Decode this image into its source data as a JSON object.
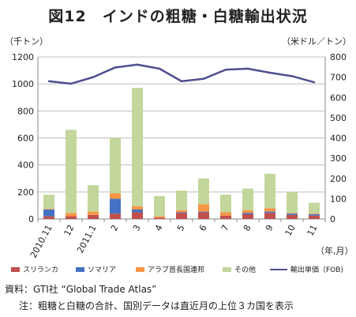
{
  "title": "図12　インドの粗糖・白糖輸出状況",
  "left_unit": "（千トン）",
  "right_unit": "（米ドル／トン）",
  "x_unit": "（年,月）",
  "source": "資料：GTI社 “Global Trade Atlas”",
  "note": "注：粗糖と白糖の合計、国別データは直近月の上位３カ国を表示",
  "colors": {
    "somalia": "#4472c4",
    "srilanka": "#c0504d",
    "uae": "#f79646",
    "other": "#c3d69b",
    "price": "#4f4f8f",
    "grid": "#bfbfbf"
  },
  "chart_data": {
    "type": "bar",
    "stacked": true,
    "categories": [
      "2010.11",
      "12",
      "2011.1",
      "2",
      "3",
      "4",
      "5",
      "6",
      "7",
      "8",
      "9",
      "10",
      "11"
    ],
    "series": [
      {
        "name": "スリランカ",
        "values": [
          20,
          20,
          30,
          40,
          50,
          10,
          45,
          50,
          25,
          35,
          45,
          30,
          25
        ]
      },
      {
        "name": "ソマリア",
        "values": [
          50,
          0,
          0,
          110,
          20,
          0,
          5,
          5,
          0,
          10,
          10,
          10,
          10
        ]
      },
      {
        "name": "アラブ首長国連邦",
        "values": [
          5,
          25,
          25,
          40,
          25,
          10,
          15,
          55,
          25,
          20,
          25,
          5,
          5
        ]
      },
      {
        "name": "その他",
        "values": [
          105,
          615,
          195,
          410,
          875,
          150,
          145,
          190,
          130,
          160,
          255,
          155,
          80
        ]
      }
    ],
    "line_series": {
      "name": "輸出単価（FOB)",
      "values": [
        680,
        668,
        700,
        748,
        762,
        742,
        680,
        692,
        737,
        742,
        722,
        705,
        675
      ]
    },
    "legend": [
      "スリランカ",
      "ソマリア",
      "アラブ首長国連邦",
      "その他",
      "輸出単価（FOB)"
    ],
    "legend_position": "bottom",
    "ylim_left": [
      0,
      1200
    ],
    "yticks_left": [
      0,
      200,
      400,
      600,
      800,
      1000,
      1200
    ],
    "ylim_right": [
      0,
      800
    ],
    "yticks_right": [
      0,
      100,
      200,
      300,
      400,
      500,
      600,
      700,
      800
    ],
    "grid": true
  }
}
